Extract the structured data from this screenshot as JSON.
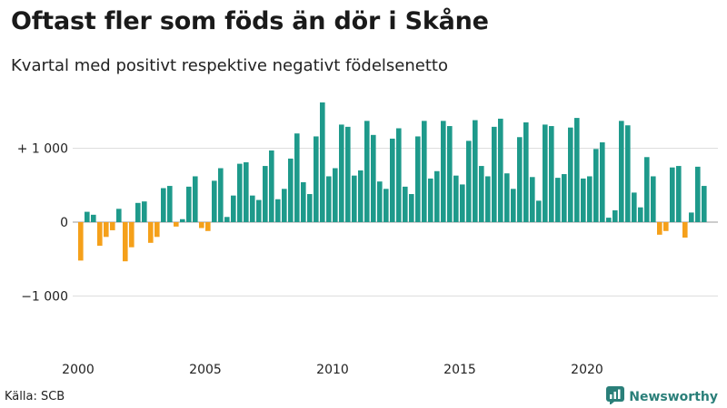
{
  "title": "Oftast fler som föds än dör i Skåne",
  "subtitle": "Kvartal med positivt respektive negativt födelsenetto",
  "source": "Källa: SCB",
  "brand": {
    "name": "Newsworthy",
    "icon": "newsworthy-logo-icon",
    "color": "#2a7f79"
  },
  "colors": {
    "positive": "#1e9a8b",
    "negative": "#f5a01a",
    "grid": "#dddddd",
    "baseline": "#999999"
  },
  "chart_data": {
    "type": "bar",
    "title": "Oftast fler som föds än dör i Skåne",
    "subtitle": "Kvartal med positivt respektive negativt födelsenetto",
    "ylim": [
      -1700,
      1700
    ],
    "yticks": [
      {
        "value": 1000,
        "label": "+ 1 000"
      },
      {
        "value": 0,
        "label": "0"
      },
      {
        "value": -1000,
        "label": "−1 000"
      }
    ],
    "xticks": [
      {
        "value": 2000,
        "label": "2000"
      },
      {
        "value": 2005,
        "label": "2005"
      },
      {
        "value": 2010,
        "label": "2010"
      },
      {
        "value": 2015,
        "label": "2015"
      },
      {
        "value": 2020,
        "label": "2020"
      }
    ],
    "start_year": 2000,
    "grid": true,
    "values": [
      -520,
      140,
      100,
      -320,
      -200,
      -110,
      180,
      -530,
      -340,
      260,
      280,
      -280,
      -200,
      460,
      490,
      -60,
      40,
      480,
      620,
      -80,
      -120,
      560,
      730,
      70,
      360,
      790,
      810,
      360,
      300,
      760,
      970,
      310,
      450,
      860,
      1200,
      540,
      380,
      1160,
      1620,
      620,
      730,
      1320,
      1290,
      630,
      700,
      1370,
      1180,
      550,
      450,
      1130,
      1270,
      480,
      380,
      1160,
      1370,
      590,
      690,
      1370,
      1300,
      630,
      510,
      1100,
      1380,
      760,
      620,
      1290,
      1400,
      660,
      450,
      1150,
      1350,
      610,
      290,
      1320,
      1300,
      600,
      650,
      1280,
      1410,
      590,
      620,
      990,
      1080,
      60,
      160,
      1370,
      1310,
      400,
      200,
      880,
      620,
      -170,
      -120,
      740,
      760,
      -210,
      130,
      750,
      490
    ]
  }
}
